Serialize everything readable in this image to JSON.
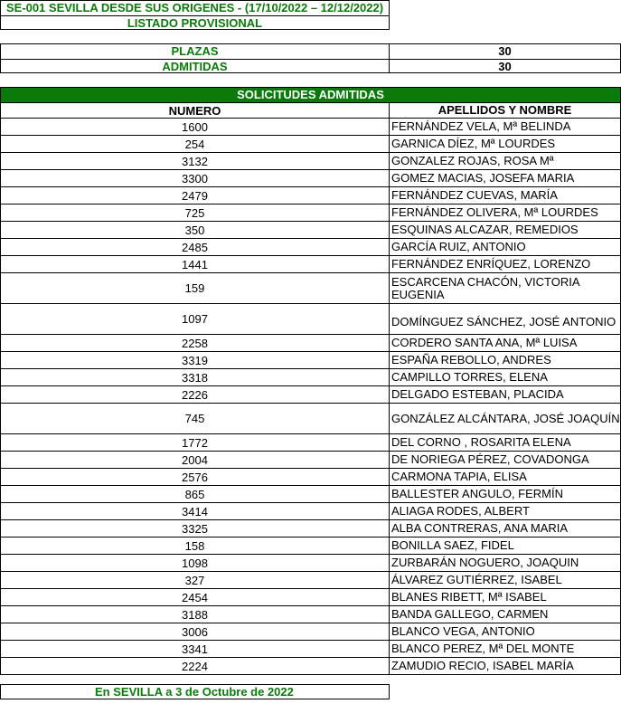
{
  "title": {
    "line1": "SE-001 SEVILLA DESDE SUS ORIGENES -  (17/10/2022 – 12/12/2022)",
    "line2": "LISTADO PROVISIONAL"
  },
  "stats": [
    {
      "label": "PLAZAS",
      "value": "30"
    },
    {
      "label": "ADMITIDAS",
      "value": "30"
    }
  ],
  "list": {
    "heading": "SOLICITUDES ADMITIDAS",
    "columns": [
      "NUMERO",
      "APELLIDOS Y NOMBRE"
    ],
    "rows": [
      {
        "numero": "1600",
        "nombre": "FERNÁNDEZ VELA, Mª BELINDA"
      },
      {
        "numero": "254",
        "nombre": "GARNICA DÍEZ, Mª LOURDES"
      },
      {
        "numero": "3132",
        "nombre": "GONZALEZ ROJAS, ROSA Mª"
      },
      {
        "numero": "3300",
        "nombre": "GOMEZ MACIAS, JOSEFA MARIA"
      },
      {
        "numero": "2479",
        "nombre": "FERNÁNDEZ CUEVAS, MARÍA"
      },
      {
        "numero": "725",
        "nombre": "FERNÁNDEZ  OLIVERA, Mª LOURDES"
      },
      {
        "numero": "350",
        "nombre": "ESQUINAS ALCAZAR, REMEDIOS"
      },
      {
        "numero": "2485",
        "nombre": "GARCÍA RUIZ, ANTONIO"
      },
      {
        "numero": "1441",
        "nombre": "FERNÁNDEZ  ENRÍQUEZ, LORENZO"
      },
      {
        "numero": "159",
        "nombre": "ESCARCENA CHACÓN, VICTORIA EUGENIA"
      },
      {
        "numero": "1097",
        "nombre": "DOMÍNGUEZ SÁNCHEZ, JOSÉ ANTONIO"
      },
      {
        "numero": "2258",
        "nombre": "CORDERO SANTA ANA, Mª LUISA"
      },
      {
        "numero": "3319",
        "nombre": "ESPAÑA REBOLLO, ANDRES"
      },
      {
        "numero": "3318",
        "nombre": "CAMPILLO TORRES, ELENA"
      },
      {
        "numero": "2226",
        "nombre": "DELGADO  ESTEBAN, PLACIDA"
      },
      {
        "numero": "745",
        "nombre": "GONZÁLEZ  ALCÁNTARA, JOSÉ JOAQUÍN"
      },
      {
        "numero": "1772",
        "nombre": "DEL CORNO  , ROSARITA ELENA"
      },
      {
        "numero": "2004",
        "nombre": "DE NORIEGA PÉREZ, COVADONGA"
      },
      {
        "numero": "2576",
        "nombre": "CARMONA TAPIA, ELISA"
      },
      {
        "numero": "865",
        "nombre": "BALLESTER  ANGULO, FERMÍN"
      },
      {
        "numero": "3414",
        "nombre": "ALIAGA RODES, ALBERT"
      },
      {
        "numero": "3325",
        "nombre": "ALBA CONTRERAS, ANA MARIA"
      },
      {
        "numero": "158",
        "nombre": "BONILLA SAEZ, FIDEL"
      },
      {
        "numero": "1098",
        "nombre": "ZURBARÁN NOGUERO, JOAQUIN"
      },
      {
        "numero": "327",
        "nombre": "ÁLVAREZ GUTIÉRREZ, ISABEL"
      },
      {
        "numero": "2454",
        "nombre": "BLANES RIBETT, Mª ISABEL"
      },
      {
        "numero": "3188",
        "nombre": "BANDA GALLEGO, CARMEN"
      },
      {
        "numero": "3006",
        "nombre": "BLANCO VEGA, ANTONIO"
      },
      {
        "numero": "3341",
        "nombre": "BLANCO PEREZ, Mª DEL MONTE"
      },
      {
        "numero": "2224",
        "nombre": "ZAMUDIO  RECIO, ISABEL MARÍA"
      }
    ]
  },
  "footer": "En SEVILLA a 3 de Octubre de 2022",
  "colors": {
    "accent": "#0a7a0a"
  }
}
